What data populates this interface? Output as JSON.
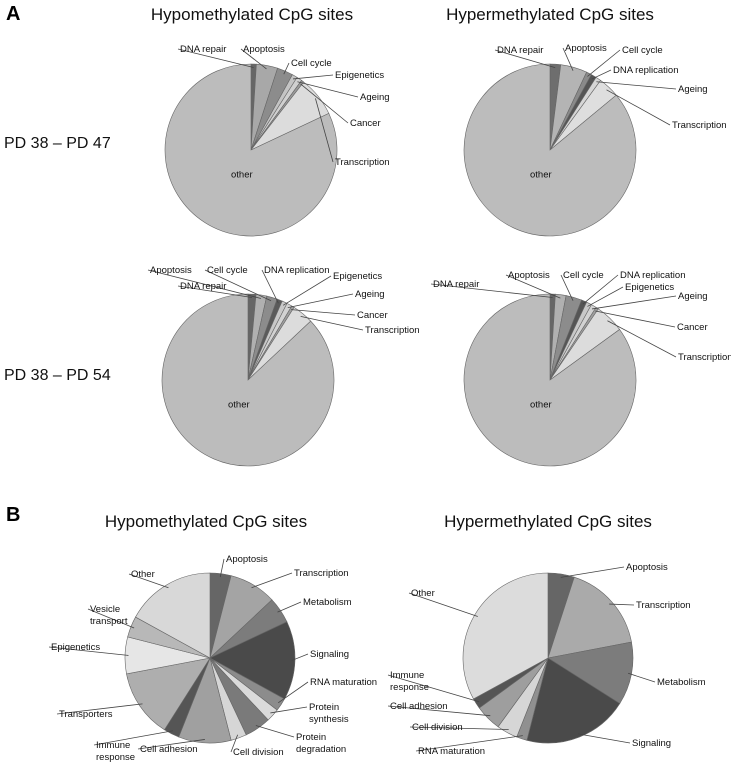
{
  "panels": {
    "a": {
      "letter": "A",
      "col_titles": [
        "Hypomethylated CpG sites",
        "Hypermethylated CpG sites"
      ],
      "row_titles": [
        "PD 38 – PD 47",
        "PD 38 – PD 54"
      ]
    },
    "b": {
      "letter": "B",
      "col_titles": [
        "Hypomethylated CpG sites",
        "Hypermethylated CpG sites"
      ]
    }
  },
  "chart_data": [
    {
      "type": "pie",
      "id": "a1",
      "panel": "A",
      "title": "Hypomethylated CpG sites",
      "row": "PD 38 – PD 47",
      "slices": [
        {
          "label": "DNA repair",
          "value": 1.0,
          "color": "#666666"
        },
        {
          "label": "Apoptosis",
          "value": 4.0,
          "color": "#a8a8a8"
        },
        {
          "label": "Cell cycle",
          "value": 3.0,
          "color": "#8c8c8c"
        },
        {
          "label": "Epigenetics",
          "value": 1.0,
          "color": "#c4c4c4"
        },
        {
          "label": "Ageing",
          "value": 1.0,
          "color": "#d0d0d0"
        },
        {
          "label": "Cancer",
          "value": 0.5,
          "color": "#9a9a9a"
        },
        {
          "label": "Transcription",
          "value": 7.5,
          "color": "#dcdcdc"
        },
        {
          "label": "other",
          "value": 82.0,
          "color": "#bcbcbc",
          "center": true
        }
      ]
    },
    {
      "type": "pie",
      "id": "a2",
      "panel": "A",
      "title": "Hypermethylated CpG sites",
      "row": "PD 38 – PD 47",
      "slices": [
        {
          "label": "DNA repair",
          "value": 2.0,
          "color": "#6e6e6e"
        },
        {
          "label": "Apoptosis",
          "value": 5.0,
          "color": "#b4b4b4"
        },
        {
          "label": "Cell cycle",
          "value": 1.0,
          "color": "#8a8a8a"
        },
        {
          "label": "DNA replication",
          "value": 1.0,
          "color": "#555555"
        },
        {
          "label": "Ageing",
          "value": 1.0,
          "color": "#d6d6d6"
        },
        {
          "label": "Transcription",
          "value": 4.0,
          "color": "#dedede"
        },
        {
          "label": "other",
          "value": 86.0,
          "color": "#bcbcbc",
          "center": true
        }
      ]
    },
    {
      "type": "pie",
      "id": "a3",
      "panel": "A",
      "title": "Hypomethylated CpG sites",
      "row": "PD 38 – PD 54",
      "slices": [
        {
          "label": "DNA repair",
          "value": 1.5,
          "color": "#666666"
        },
        {
          "label": "Apoptosis",
          "value": 2.0,
          "color": "#b0b0b0"
        },
        {
          "label": "Cell cycle",
          "value": 2.0,
          "color": "#8c8c8c"
        },
        {
          "label": "DNA replication",
          "value": 1.0,
          "color": "#5a5a5a"
        },
        {
          "label": "Epigenetics",
          "value": 1.0,
          "color": "#c8c8c8"
        },
        {
          "label": "Ageing",
          "value": 1.0,
          "color": "#d2d2d2"
        },
        {
          "label": "Cancer",
          "value": 0.5,
          "color": "#9e9e9e"
        },
        {
          "label": "Transcription",
          "value": 4.0,
          "color": "#dcdcdc"
        },
        {
          "label": "other",
          "value": 87.0,
          "color": "#bcbcbc",
          "center": true
        }
      ]
    },
    {
      "type": "pie",
      "id": "a4",
      "panel": "A",
      "title": "Hypermethylated CpG sites",
      "row": "PD 38 – PD 54",
      "slices": [
        {
          "label": "DNA repair",
          "value": 1.0,
          "color": "#666666"
        },
        {
          "label": "Apoptosis",
          "value": 2.0,
          "color": "#b0b0b0"
        },
        {
          "label": "Cell cycle",
          "value": 3.0,
          "color": "#8c8c8c"
        },
        {
          "label": "DNA replication",
          "value": 1.0,
          "color": "#555555"
        },
        {
          "label": "Epigenetics",
          "value": 1.0,
          "color": "#c8c8c8"
        },
        {
          "label": "Ageing",
          "value": 1.0,
          "color": "#d2d2d2"
        },
        {
          "label": "Cancer",
          "value": 0.5,
          "color": "#9e9e9e"
        },
        {
          "label": "Transcription",
          "value": 5.5,
          "color": "#dcdcdc"
        },
        {
          "label": "other",
          "value": 85.0,
          "color": "#bcbcbc",
          "center": true
        }
      ]
    },
    {
      "type": "pie",
      "id": "b1",
      "panel": "B",
      "title": "Hypomethylated CpG sites",
      "slices": [
        {
          "label": "Apoptosis",
          "value": 4.0,
          "color": "#666666"
        },
        {
          "label": "Transcription",
          "value": 9.0,
          "color": "#a4a4a4"
        },
        {
          "label": "Metabolism",
          "value": 5.0,
          "color": "#7c7c7c"
        },
        {
          "label": "Signaling",
          "value": 15.0,
          "color": "#4a4a4a"
        },
        {
          "label": "RNA maturation",
          "value": 2.5,
          "color": "#8c8c8c"
        },
        {
          "label": "Protein synthesis",
          "value": 2.5,
          "color": "#dadada"
        },
        {
          "label": "Protein degradation",
          "value": 5.0,
          "color": "#7a7a7a"
        },
        {
          "label": "Cell division",
          "value": 3.0,
          "color": "#d6d6d6"
        },
        {
          "label": "Cell adhesion",
          "value": 10.0,
          "color": "#a0a0a0"
        },
        {
          "label": "Immune response",
          "value": 3.0,
          "color": "#555555"
        },
        {
          "label": "Transporters",
          "value": 13.0,
          "color": "#aeaeae"
        },
        {
          "label": "Epigenetics",
          "value": 7.0,
          "color": "#e6e6e6"
        },
        {
          "label": "Vesicle transport",
          "value": 4.0,
          "color": "#b8b8b8"
        },
        {
          "label": "Other",
          "value": 17.0,
          "color": "#d8d8d8"
        }
      ]
    },
    {
      "type": "pie",
      "id": "b2",
      "panel": "B",
      "title": "Hypermethylated CpG sites",
      "slices": [
        {
          "label": "Apoptosis",
          "value": 5.0,
          "color": "#666666"
        },
        {
          "label": "Transcription",
          "value": 17.0,
          "color": "#aaaaaa"
        },
        {
          "label": "Metabolism",
          "value": 12.0,
          "color": "#7c7c7c"
        },
        {
          "label": "Signaling",
          "value": 20.0,
          "color": "#4a4a4a"
        },
        {
          "label": "RNA maturation",
          "value": 2.0,
          "color": "#909090"
        },
        {
          "label": "Cell division",
          "value": 4.0,
          "color": "#d6d6d6"
        },
        {
          "label": "Cell adhesion",
          "value": 5.0,
          "color": "#9e9e9e"
        },
        {
          "label": "Immune response",
          "value": 2.0,
          "color": "#555555"
        },
        {
          "label": "Other",
          "value": 33.0,
          "color": "#dcdcdc"
        }
      ]
    }
  ]
}
